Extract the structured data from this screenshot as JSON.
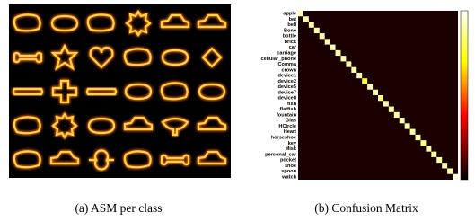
{
  "figure": {
    "panel_a": {
      "caption": "(a) ASM per class"
    },
    "panel_b": {
      "caption": "(b) Confusion Matrix",
      "labels": [
        "apple",
        "bat",
        "bell",
        "Bone",
        "bottle",
        "brick",
        "car",
        "carriage",
        "cellular_phone",
        "Comma",
        "crown",
        "device1",
        "device2",
        "device5",
        "device7",
        "device8",
        "fish",
        "flatfish",
        "fountain",
        "Glas",
        "HCircle",
        "Heart",
        "horseshoe",
        "key",
        "Misk",
        "personal_car",
        "pocket",
        "shoe",
        "spoon",
        "watch"
      ],
      "diagonal": [
        0.9,
        0.9,
        0.9,
        0.9,
        0.9,
        0.9,
        0.9,
        0.9,
        0.9,
        0.9,
        0.9,
        0.9,
        0.75,
        0.9,
        0.9,
        0.85,
        0.9,
        0.9,
        0.9,
        0.9,
        0.9,
        0.9,
        0.9,
        0.85,
        0.9,
        0.9,
        0.9,
        0.9,
        0.9,
        0.95
      ],
      "color_range": [
        0,
        1
      ]
    }
  }
}
